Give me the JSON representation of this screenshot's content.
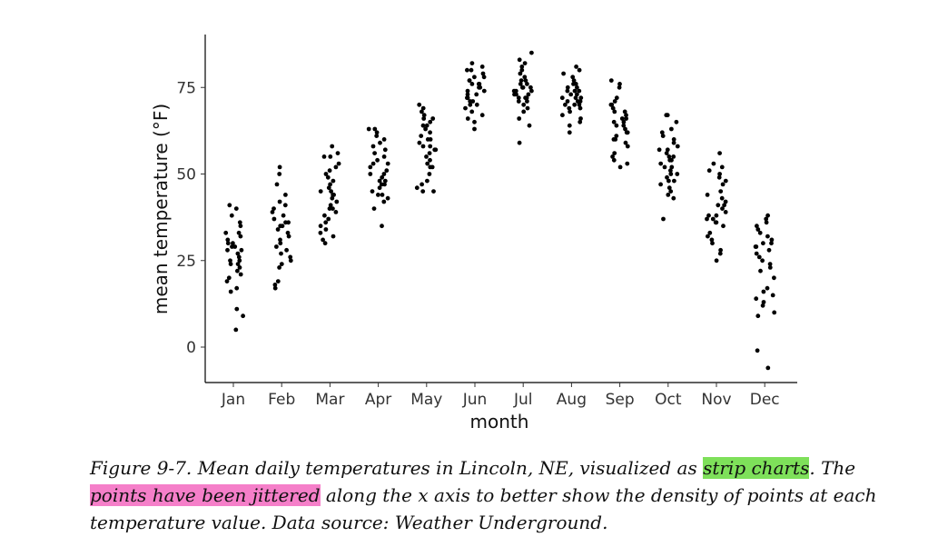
{
  "chart_data": {
    "type": "scatter",
    "subtype": "strip",
    "title": "",
    "xlabel": "month",
    "ylabel": "mean temperature (°F)",
    "categories": [
      "Jan",
      "Feb",
      "Mar",
      "Apr",
      "May",
      "Jun",
      "Jul",
      "Aug",
      "Sep",
      "Oct",
      "Nov",
      "Dec"
    ],
    "ylim": [
      -10,
      90
    ],
    "yticks": [
      0,
      25,
      50,
      75
    ],
    "grid": false,
    "legend": "none",
    "point_color": "#000000",
    "jitter": 0.2,
    "series": [
      {
        "category": "Jan",
        "values": [
          40,
          41,
          5,
          9,
          11,
          17,
          19,
          21,
          22,
          23,
          24,
          25,
          26,
          28,
          29,
          30,
          31,
          33,
          35,
          36,
          33,
          30,
          27,
          24,
          20,
          16,
          28,
          32,
          38,
          29,
          25
        ]
      },
      {
        "category": "Feb",
        "values": [
          17,
          18,
          19,
          23,
          24,
          25,
          27,
          28,
          29,
          30,
          32,
          33,
          34,
          35,
          36,
          36,
          37,
          38,
          40,
          41,
          42,
          44,
          47,
          50,
          52,
          31,
          26,
          35,
          39
        ]
      },
      {
        "category": "Mar",
        "values": [
          30,
          31,
          32,
          33,
          34,
          36,
          37,
          38,
          39,
          40,
          41,
          42,
          43,
          44,
          45,
          45,
          46,
          47,
          48,
          50,
          51,
          53,
          55,
          55,
          56,
          58,
          35,
          40,
          44,
          49,
          52
        ]
      },
      {
        "category": "Apr",
        "values": [
          35,
          40,
          42,
          43,
          44,
          45,
          46,
          47,
          48,
          48,
          49,
          50,
          51,
          52,
          53,
          54,
          55,
          56,
          57,
          58,
          60,
          61,
          62,
          63,
          63,
          44,
          47,
          50,
          53,
          59
        ]
      },
      {
        "category": "May",
        "values": [
          45,
          45,
          46,
          47,
          48,
          50,
          52,
          54,
          55,
          56,
          57,
          58,
          59,
          60,
          61,
          62,
          63,
          64,
          65,
          66,
          67,
          68,
          69,
          70,
          53,
          57,
          60,
          64,
          66,
          52,
          58
        ]
      },
      {
        "category": "Jun",
        "values": [
          63,
          65,
          66,
          67,
          68,
          69,
          70,
          71,
          72,
          72,
          73,
          74,
          75,
          75,
          76,
          76,
          77,
          78,
          79,
          80,
          80,
          81,
          82,
          74,
          77,
          71,
          73,
          78,
          70,
          76
        ]
      },
      {
        "category": "Jul",
        "values": [
          59,
          64,
          66,
          68,
          69,
          70,
          71,
          72,
          72,
          73,
          73,
          74,
          74,
          75,
          75,
          76,
          76,
          77,
          78,
          79,
          80,
          81,
          82,
          83,
          85,
          74,
          72,
          77,
          75,
          71,
          73
        ]
      },
      {
        "category": "Aug",
        "values": [
          62,
          64,
          65,
          66,
          67,
          68,
          69,
          70,
          70,
          71,
          71,
          72,
          72,
          73,
          73,
          74,
          74,
          75,
          75,
          76,
          77,
          78,
          79,
          80,
          81,
          72,
          70,
          74,
          71,
          76,
          69
        ]
      },
      {
        "category": "Sep",
        "values": [
          52,
          53,
          54,
          55,
          56,
          58,
          59,
          60,
          61,
          62,
          63,
          64,
          65,
          65,
          66,
          67,
          68,
          68,
          69,
          70,
          71,
          72,
          75,
          76,
          77,
          64,
          66,
          62,
          60,
          70
        ]
      },
      {
        "category": "Oct",
        "values": [
          37,
          43,
          44,
          45,
          46,
          47,
          48,
          49,
          50,
          51,
          52,
          53,
          54,
          55,
          55,
          56,
          57,
          58,
          59,
          60,
          61,
          62,
          63,
          65,
          67,
          67,
          50,
          54,
          57,
          52,
          48
        ]
      },
      {
        "category": "Nov",
        "values": [
          25,
          27,
          28,
          30,
          31,
          32,
          33,
          35,
          36,
          37,
          37,
          38,
          39,
          40,
          41,
          42,
          43,
          45,
          47,
          48,
          49,
          50,
          51,
          52,
          53,
          56,
          38,
          41,
          36,
          44
        ]
      },
      {
        "category": "Dec",
        "values": [
          -6,
          -1,
          9,
          10,
          12,
          13,
          14,
          15,
          16,
          17,
          20,
          23,
          24,
          25,
          26,
          28,
          29,
          29,
          30,
          30,
          31,
          32,
          33,
          34,
          35,
          36,
          37,
          38,
          27,
          22
        ]
      }
    ]
  },
  "caption": {
    "part1": "Figure 9-7. Mean daily temperatures in Lincoln, NE, visualized as ",
    "highlight1": "strip charts",
    "part2": ". The ",
    "highlight2": "points have been jittered",
    "part3": " along the x axis to better show the density of points at each temperature value. Data source: Weather Underground.",
    "highlight1_color": "#7ee05a",
    "highlight2_color": "#f57fc9"
  }
}
